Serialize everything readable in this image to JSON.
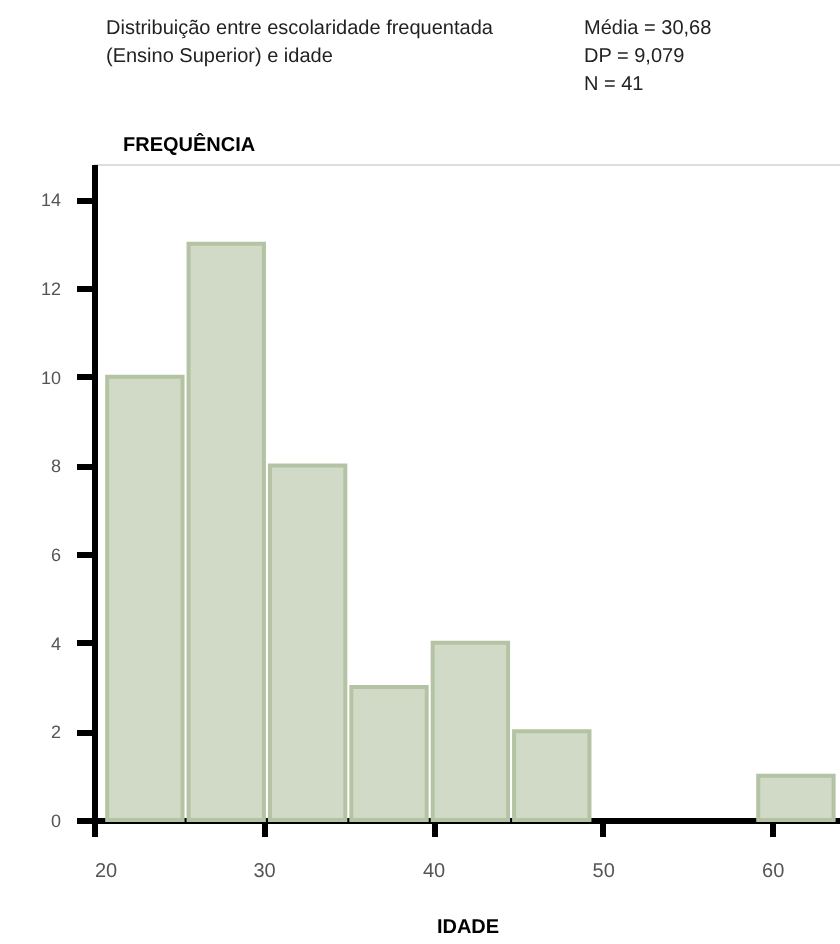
{
  "chart_data": {
    "type": "histogram",
    "title": [
      "Distribuição entre escolaridade frequentada",
      "(Ensino Superior) e idade"
    ],
    "annotations": [
      "Média = 30,68",
      "DP = 9,079",
      "N = 41"
    ],
    "xlabel": "IDADE",
    "ylabel": "FREQUÊNCIA",
    "bins": [
      20.6,
      25.4,
      30.2,
      35,
      39.8,
      44.6,
      49.4,
      54.2,
      59,
      63.8
    ],
    "values": [
      10,
      13,
      8,
      3,
      4,
      2,
      0,
      0,
      1
    ],
    "color": "#d0dac6",
    "xlim": [
      20,
      64
    ],
    "xticks": [
      20,
      30,
      40,
      50,
      60
    ],
    "ylim": [
      0,
      14.8
    ],
    "yticks": [
      0,
      2,
      4,
      6,
      8,
      10,
      12,
      14
    ],
    "grid": false
  }
}
